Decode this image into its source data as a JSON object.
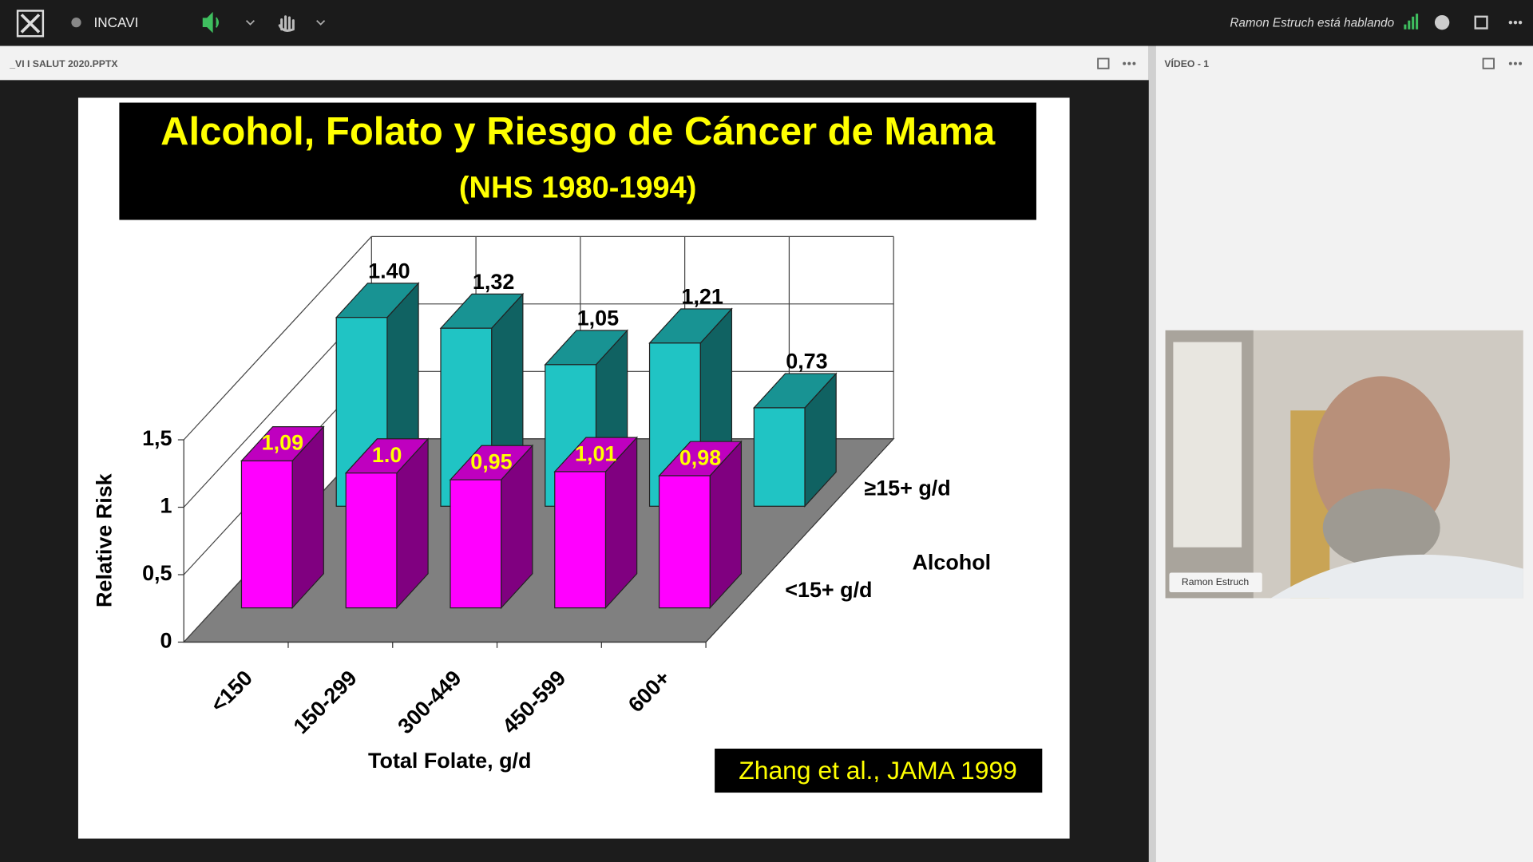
{
  "top_bar": {
    "meeting_name": "INCAVI",
    "speaking_status": "Ramon Estruch está hablando"
  },
  "share_pod": {
    "title": "_VI I SALUT 2020.PPTX"
  },
  "video_pod": {
    "title": "VÍDEO - 1",
    "participant": "Ramon Estruch"
  },
  "chart_data": {
    "type": "bar3d",
    "title": "Alcohol, Folato y Riesgo de Cáncer de Mama",
    "subtitle": "(NHS 1980-1994)",
    "xlabel": "Total Folate, g/d",
    "ylabel": "Relative Risk",
    "legend_title": "Alcohol",
    "note": "Zhang et al., JAMA 1999",
    "categories": [
      "<150",
      "150-299",
      "300-449",
      "450-599",
      "600+"
    ],
    "series": [
      {
        "name": "<15+ g/d",
        "color": "#ff00ff",
        "values": [
          1.09,
          1.0,
          0.95,
          1.01,
          0.98
        ],
        "value_labels": [
          "1,09",
          "1.0",
          "0,95",
          "1,01",
          "0,98"
        ]
      },
      {
        "name": "≥15+ g/d",
        "color": "#20c4c4",
        "values": [
          1.4,
          1.32,
          1.05,
          1.21,
          0.73
        ],
        "value_labels": [
          "1.40",
          "1,32",
          "1,05",
          "1,21",
          "0,73"
        ]
      }
    ],
    "ylim": [
      0,
      1.5
    ],
    "yticks": [
      0,
      {
        "value": 0.5,
        "label": "0,5"
      },
      1,
      {
        "value": 1.5,
        "label": "1,5"
      }
    ],
    "grid": true
  }
}
